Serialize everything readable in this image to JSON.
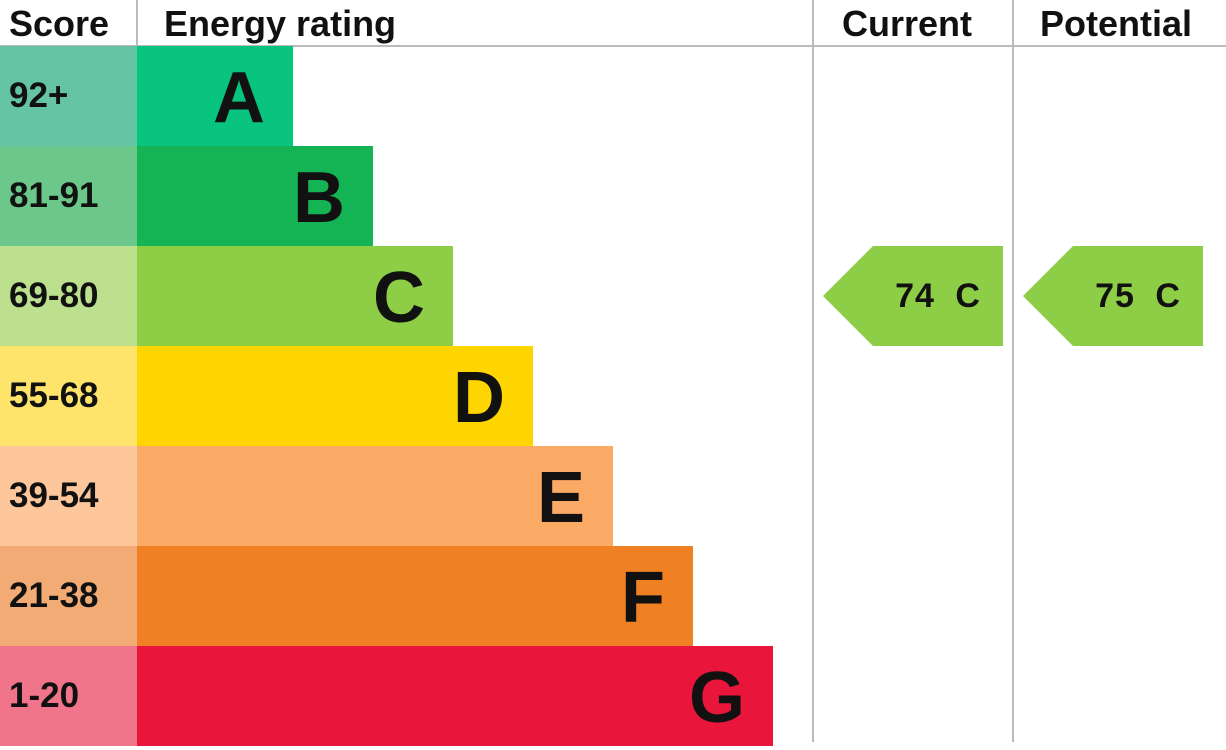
{
  "chart_data": {
    "type": "bar",
    "headers": {
      "score": "Score",
      "rating": "Energy rating",
      "current": "Current",
      "potential": "Potential"
    },
    "bands": [
      {
        "range": "92+",
        "letter": "A",
        "color": "#08c47f",
        "score_color": "#64c4a4"
      },
      {
        "range": "81-91",
        "letter": "B",
        "color": "#14b455",
        "score_color": "#6cc88a"
      },
      {
        "range": "69-80",
        "letter": "C",
        "color": "#8dce46",
        "score_color": "#bde08e"
      },
      {
        "range": "55-68",
        "letter": "D",
        "color": "#fed500",
        "score_color": "#fee46a"
      },
      {
        "range": "39-54",
        "letter": "E",
        "color": "#fbaa65",
        "score_color": "#fdc79b"
      },
      {
        "range": "21-38",
        "letter": "F",
        "color": "#ef8023",
        "score_color": "#f3ab76"
      },
      {
        "range": "1-20",
        "letter": "G",
        "color": "#e9153b",
        "score_color": "#f0758a"
      }
    ],
    "current": {
      "value": 74,
      "band": "C",
      "label": "74 C",
      "color": "#8dce46"
    },
    "potential": {
      "value": 75,
      "band": "C",
      "label": "75 C",
      "color": "#8dce46"
    }
  }
}
